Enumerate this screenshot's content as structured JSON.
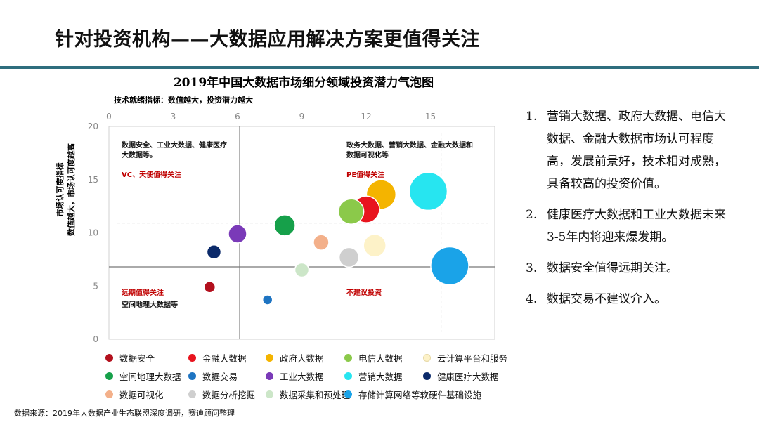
{
  "page": {
    "title": "针对投资机构——大数据应用解决方案更值得关注",
    "source": "数据来源：2019年大数据产业生态联盟深度调研，赛迪顾问整理"
  },
  "notes": [
    {
      "num": "1.",
      "text": "营销大数据、政府大数据、电信大数据、金融大数据市场认可程度高，发展前景好，技术相对成熟，具备较高的投资价值。"
    },
    {
      "num": "2.",
      "text": "健康医疗大数据和工业大数据未来3-5年内将迎来爆发期。"
    },
    {
      "num": "3.",
      "text": "数据安全值得远期关注。"
    },
    {
      "num": "4.",
      "text": "数据交易不建议介入。"
    }
  ],
  "chart_data": {
    "type": "bubble",
    "title": "2019年中国大数据市场细分领域投资潜力气泡图",
    "x_axis": {
      "label": "技术就绪指标：数值越大，投资潜力越大",
      "ticks": [
        0,
        3,
        6,
        9,
        12,
        15
      ],
      "range": [
        0,
        18
      ]
    },
    "y_axis": {
      "label_line1": "市场认可度指标",
      "label_line2": "数值越大，市场认可度越高",
      "ticks": [
        0,
        5,
        10,
        15,
        20
      ],
      "range": [
        0,
        20
      ]
    },
    "divider": {
      "x": 6.1,
      "y": 6.8
    },
    "quadrants": [
      {
        "label": "数据安全、工业大数据、健康医疗大数据等。",
        "sub_label": "VC、天使值得关注"
      },
      {
        "label": "政务大数据、营销大数据、金融大数据和数据可视化等",
        "sub_label": "PE值得关注"
      },
      {
        "label": "空间地理大数据等",
        "sub_label": "远期值得关注"
      },
      {
        "label": "",
        "sub_label": "不建议投资"
      }
    ],
    "series": [
      {
        "name": "数据安全",
        "color": "#b3101d",
        "x": 4.7,
        "y": 4.9,
        "size": 8
      },
      {
        "name": "金融大数据",
        "color": "#e8141e",
        "x": 12.0,
        "y": 12.2,
        "size": 19
      },
      {
        "name": "政府大数据",
        "color": "#f4b400",
        "x": 12.7,
        "y": 13.6,
        "size": 21
      },
      {
        "name": "电信大数据",
        "color": "#8bc94a",
        "x": 11.3,
        "y": 12.0,
        "size": 18
      },
      {
        "name": "云计算平台和服务",
        "color": "#fdf2c8",
        "x": 12.4,
        "y": 8.8,
        "size": 16
      },
      {
        "name": "空间地理大数据",
        "color": "#16a04a",
        "x": 8.2,
        "y": 10.7,
        "size": 15
      },
      {
        "name": "数据交易",
        "color": "#1e74c2",
        "x": 7.4,
        "y": 3.7,
        "size": 7
      },
      {
        "name": "工业大数据",
        "color": "#7a3ab8",
        "x": 6.0,
        "y": 9.9,
        "size": 13
      },
      {
        "name": "营销大数据",
        "color": "#27e5f0",
        "x": 14.9,
        "y": 13.9,
        "size": 27
      },
      {
        "name": "健康医疗大数据",
        "color": "#0b2a6a",
        "x": 4.9,
        "y": 8.2,
        "size": 10
      },
      {
        "name": "数据可视化",
        "color": "#f3b08a",
        "x": 9.9,
        "y": 9.1,
        "size": 11
      },
      {
        "name": "数据分析挖掘",
        "color": "#cfcfcf",
        "x": 11.2,
        "y": 7.7,
        "size": 14
      },
      {
        "name": "数据采集和预处理",
        "color": "#cce6c8",
        "x": 9.0,
        "y": 6.5,
        "size": 10
      },
      {
        "name": "存储计算网络等软硬件基础设施",
        "color": "#1aa3e8",
        "x": 15.9,
        "y": 6.9,
        "size": 27
      }
    ]
  }
}
